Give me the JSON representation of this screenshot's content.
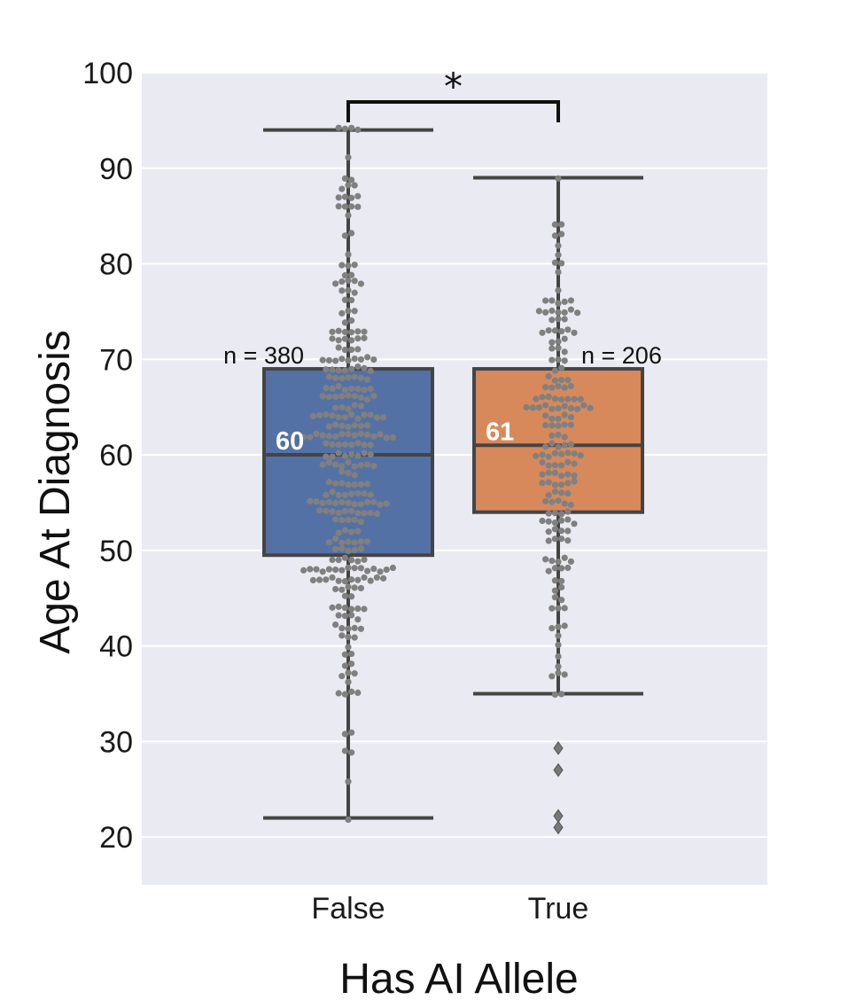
{
  "chart_data": {
    "type": "box",
    "xlabel": "Has AI Allele",
    "ylabel": "Age At Diagnosis",
    "ylim": [
      15,
      100
    ],
    "yticks": [
      20,
      30,
      40,
      50,
      60,
      70,
      80,
      90,
      100
    ],
    "grid": "horizontal",
    "background": "#eaeaf2",
    "categories": [
      "False",
      "True"
    ],
    "boxes": [
      {
        "category": "False",
        "color": "#5471a5",
        "n_label": "n = 380",
        "median_label": "60",
        "median": 60,
        "q1": 49.5,
        "q3": 69,
        "whisker_low": 22,
        "whisker_high": 94,
        "outliers": []
      },
      {
        "category": "True",
        "color": "#d7895c",
        "n_label": "n = 206",
        "median_label": "61",
        "median": 61,
        "q1": 54,
        "q3": 69,
        "whisker_low": 35,
        "whisker_high": 89,
        "outliers": [
          29.3,
          27,
          22.2,
          21
        ]
      }
    ],
    "significance": {
      "label": "*",
      "between": [
        "False",
        "True"
      ]
    },
    "swarm_color": "#808080",
    "box_edge_color": "#444444"
  }
}
